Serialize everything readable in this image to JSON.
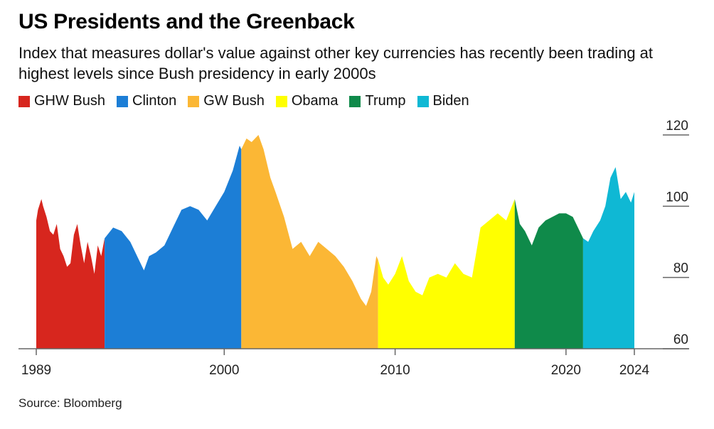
{
  "title": "US Presidents and the Greenback",
  "subtitle": "Index that measures dollar's value against other key currencies has recently been trading at highest levels since Bush presidency in early 2000s",
  "source": "Source: Bloomberg",
  "chart_data": {
    "type": "area",
    "xlim": [
      1989,
      2024
    ],
    "ylim": [
      60,
      120
    ],
    "y_ticks": [
      60,
      80,
      100,
      120
    ],
    "x_ticks": [
      1989,
      2000,
      2010,
      2020,
      2024
    ],
    "y_tick_labels": [
      "60",
      "80",
      "100",
      "120"
    ],
    "x_tick_labels": [
      "1989",
      "2000",
      "2010",
      "2020",
      "2024"
    ],
    "legend_placement": "top-left",
    "series": [
      {
        "name": "GHW Bush",
        "color": "#d7261e",
        "x": [
          1989.0,
          1989.1,
          1989.3,
          1989.4,
          1989.6,
          1989.8,
          1990.0,
          1990.2,
          1990.4,
          1990.6,
          1990.8,
          1991.0,
          1991.2,
          1991.4,
          1991.6,
          1991.8,
          1992.0,
          1992.2,
          1992.4,
          1992.6,
          1992.8,
          1993.0
        ],
        "y": [
          96,
          99,
          102,
          100,
          97,
          93,
          92,
          95,
          88,
          86,
          83,
          84,
          92,
          95,
          89,
          84,
          90,
          86,
          81,
          89,
          86,
          91
        ]
      },
      {
        "name": "Clinton",
        "color": "#1c7ed6",
        "x": [
          1993.0,
          1993.5,
          1994.0,
          1994.5,
          1995.0,
          1995.3,
          1995.6,
          1996.0,
          1996.5,
          1997.0,
          1997.5,
          1998.0,
          1998.5,
          1999.0,
          1999.5,
          2000.0,
          2000.5,
          2000.9,
          2001.0
        ],
        "y": [
          91,
          94,
          93,
          90,
          85,
          82,
          86,
          87,
          89,
          94,
          99,
          100,
          99,
          96,
          100,
          104,
          110,
          117,
          116
        ]
      },
      {
        "name": "GW Bush",
        "color": "#fbb735",
        "x": [
          2001.0,
          2001.3,
          2001.6,
          2002.0,
          2002.3,
          2002.7,
          2003.0,
          2003.5,
          2004.0,
          2004.5,
          2005.0,
          2005.5,
          2006.0,
          2006.5,
          2007.0,
          2007.5,
          2008.0,
          2008.3,
          2008.6,
          2008.9,
          2009.0
        ],
        "y": [
          116,
          119,
          118,
          120,
          116,
          108,
          104,
          97,
          88,
          90,
          86,
          90,
          88,
          86,
          83,
          79,
          74,
          72,
          76,
          86,
          85
        ]
      },
      {
        "name": "Obama",
        "color": "#ffff00",
        "x": [
          2009.0,
          2009.3,
          2009.6,
          2010.0,
          2010.4,
          2010.8,
          2011.2,
          2011.6,
          2012.0,
          2012.5,
          2013.0,
          2013.5,
          2014.0,
          2014.5,
          2015.0,
          2015.5,
          2016.0,
          2016.5,
          2017.0
        ],
        "y": [
          85,
          80,
          78,
          81,
          86,
          79,
          76,
          75,
          80,
          81,
          80,
          84,
          81,
          80,
          94,
          96,
          98,
          96,
          102
        ]
      },
      {
        "name": "Trump",
        "color": "#0f8a4a",
        "x": [
          2017.0,
          2017.3,
          2017.6,
          2018.0,
          2018.4,
          2018.8,
          2019.2,
          2019.6,
          2020.0,
          2020.4,
          2020.8,
          2021.0
        ],
        "y": [
          102,
          95,
          93,
          89,
          94,
          96,
          97,
          98,
          98,
          97,
          93,
          91
        ]
      },
      {
        "name": "Biden",
        "color": "#0fb8d4",
        "x": [
          2021.0,
          2021.3,
          2021.6,
          2022.0,
          2022.3,
          2022.6,
          2022.9,
          2023.2,
          2023.5,
          2023.8,
          2024.0
        ],
        "y": [
          91,
          90,
          93,
          96,
          100,
          108,
          111,
          102,
          104,
          101,
          104
        ]
      }
    ]
  }
}
